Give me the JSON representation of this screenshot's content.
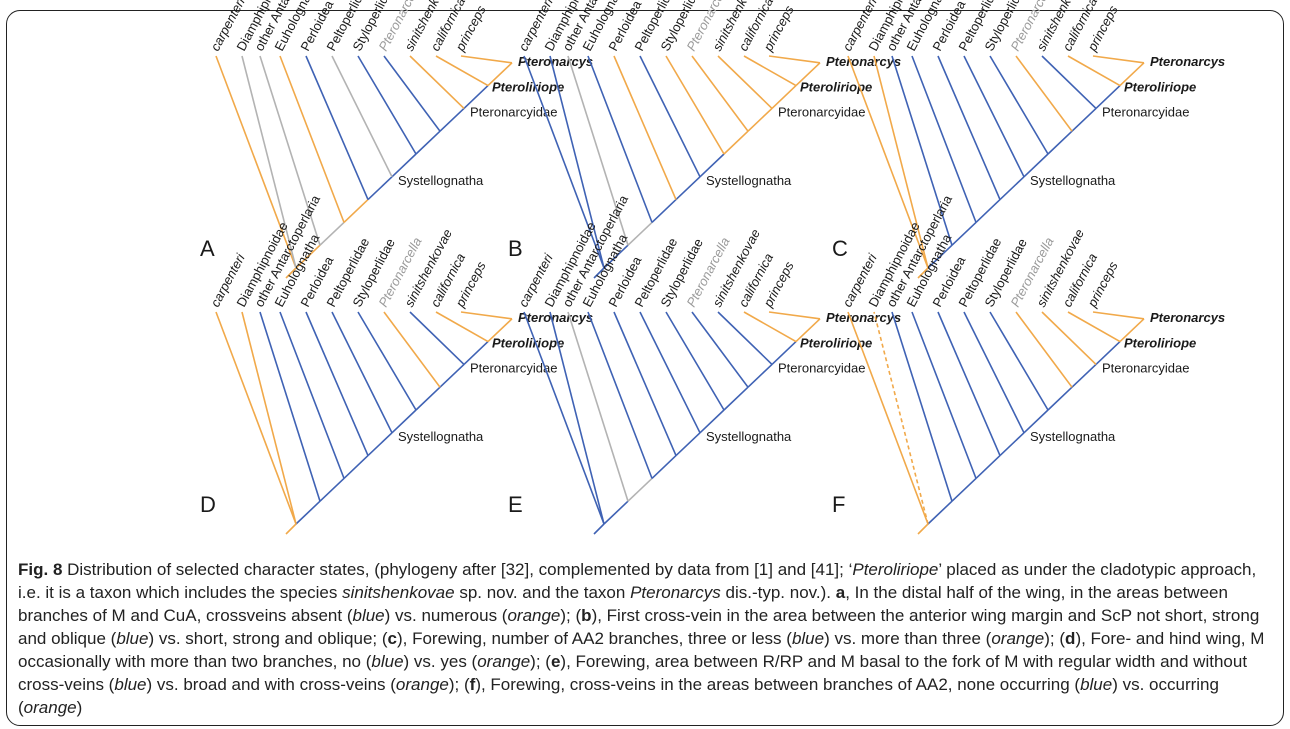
{
  "colors": {
    "blue": "#3f62b4",
    "orange": "#f1a94a",
    "gray": "#b3b3b3",
    "text": "#1a1a1a",
    "text_gray": "#9a9a9a"
  },
  "taxa": [
    {
      "label": "carpenteri",
      "italic": true
    },
    {
      "label": "Diamphipnoidae",
      "italic": false
    },
    {
      "label": "other Antarctoperlaria",
      "italic": false
    },
    {
      "label": "Euholognatha",
      "italic": false
    },
    {
      "label": "Perloidea",
      "italic": false
    },
    {
      "label": "Peltoperlidae",
      "italic": false
    },
    {
      "label": "Styloperlidae",
      "italic": false
    },
    {
      "label": "Pteronarcella",
      "italic": true,
      "gray": true
    },
    {
      "label": "sinitshenkovae",
      "italic": true
    },
    {
      "label": "californica",
      "italic": true
    },
    {
      "label": "princeps",
      "italic": true
    }
  ],
  "clade_labels": {
    "pteronarcys": "Pteronarcys",
    "pteroliriope": "Pteroliriope",
    "pteronarcyidae": "Pteronarcyidae",
    "systellognatha": "Systellognatha"
  },
  "panels": [
    {
      "letter": "A",
      "tips": [
        "o",
        "g",
        "g",
        "o",
        "b",
        "g",
        "b",
        "b",
        "o",
        "o",
        "o"
      ],
      "branches": [
        "o",
        "o",
        "g",
        "o",
        "b",
        "b",
        "b",
        "b",
        "b",
        "o"
      ],
      "dashed": []
    },
    {
      "letter": "B",
      "tips": [
        "b",
        "b",
        "g",
        "b",
        "o",
        "b",
        "o",
        "o",
        "o",
        "o",
        "o"
      ],
      "branches": [
        "b",
        "b",
        "g",
        "b",
        "b",
        "b",
        "o",
        "o",
        "o",
        "o"
      ],
      "dashed": []
    },
    {
      "letter": "C",
      "tips": [
        "o",
        "o",
        "b",
        "b",
        "b",
        "b",
        "b",
        "o",
        "b",
        "o",
        "o"
      ],
      "branches": [
        "o",
        "b",
        "b",
        "b",
        "b",
        "b",
        "b",
        "b",
        "b",
        "o"
      ],
      "dashed": []
    },
    {
      "letter": "D",
      "tips": [
        "o",
        "o",
        "b",
        "b",
        "b",
        "b",
        "b",
        "o",
        "b",
        "o",
        "o"
      ],
      "branches": [
        "o",
        "b",
        "b",
        "b",
        "b",
        "b",
        "b",
        "b",
        "b",
        "o"
      ],
      "dashed": []
    },
    {
      "letter": "E",
      "tips": [
        "b",
        "b",
        "g",
        "b",
        "b",
        "b",
        "b",
        "b",
        "b",
        "o",
        "o"
      ],
      "branches": [
        "b",
        "b",
        "g",
        "b",
        "b",
        "b",
        "b",
        "b",
        "b",
        "o"
      ],
      "dashed": []
    },
    {
      "letter": "F",
      "tips": [
        "o",
        "o",
        "b",
        "b",
        "b",
        "b",
        "b",
        "o",
        "o",
        "o",
        "o"
      ],
      "branches": [
        "o",
        "b",
        "b",
        "b",
        "b",
        "b",
        "b",
        "b",
        "b",
        "o"
      ],
      "dashed": [
        1
      ]
    }
  ],
  "caption": {
    "parts": [
      {
        "t": "Fig. 8",
        "b": true
      },
      {
        "t": " Distribution of selected character states, (phylogeny after [32], complemented by data from [1] and [41]; ‘"
      },
      {
        "t": "Pteroliriope",
        "i": true
      },
      {
        "t": "’ placed as under the cladotypic approach, i.e. it is a taxon which includes the species "
      },
      {
        "t": "sinitshenkovae",
        "i": true
      },
      {
        "t": " sp. nov. and the taxon "
      },
      {
        "t": "Pteronarcys",
        "i": true
      },
      {
        "t": " dis.-typ. nov.). "
      },
      {
        "t": "a",
        "b": true
      },
      {
        "t": ", In the distal half of the wing, in the areas between branches of M and CuA, crossveins absent ("
      },
      {
        "t": "blue",
        "i": true
      },
      {
        "t": ") vs. numerous ("
      },
      {
        "t": "orange",
        "i": true
      },
      {
        "t": "); ("
      },
      {
        "t": "b",
        "b": true
      },
      {
        "t": "), First cross-vein in the area between the anterior wing margin and ScP not short, strong and oblique ("
      },
      {
        "t": "blue",
        "i": true
      },
      {
        "t": ") vs. short, strong and oblique; ("
      },
      {
        "t": "c",
        "b": true
      },
      {
        "t": "), Forewing, number of AA2 branches, three or less ("
      },
      {
        "t": "blue",
        "i": true
      },
      {
        "t": ") vs. more than three ("
      },
      {
        "t": "orange",
        "i": true
      },
      {
        "t": "); ("
      },
      {
        "t": "d",
        "b": true
      },
      {
        "t": "), Fore- and hind wing, M occasionally with more than two branches, no ("
      },
      {
        "t": "blue",
        "i": true
      },
      {
        "t": ") vs. yes ("
      },
      {
        "t": "orange",
        "i": true
      },
      {
        "t": "); ("
      },
      {
        "t": "e",
        "b": true
      },
      {
        "t": "), Forewing, area between R/RP and M basal to the fork of M with regular width and without cross-veins ("
      },
      {
        "t": "blue",
        "i": true
      },
      {
        "t": ") vs. broad and with cross-veins ("
      },
      {
        "t": "orange",
        "i": true
      },
      {
        "t": "); ("
      },
      {
        "t": "f",
        "b": true
      },
      {
        "t": "), Forewing, cross-veins in the areas between branches of AA2, none occurring ("
      },
      {
        "t": "blue",
        "i": true
      },
      {
        "t": ") vs. occurring ("
      },
      {
        "t": "orange",
        "i": true
      },
      {
        "t": ")"
      }
    ]
  }
}
